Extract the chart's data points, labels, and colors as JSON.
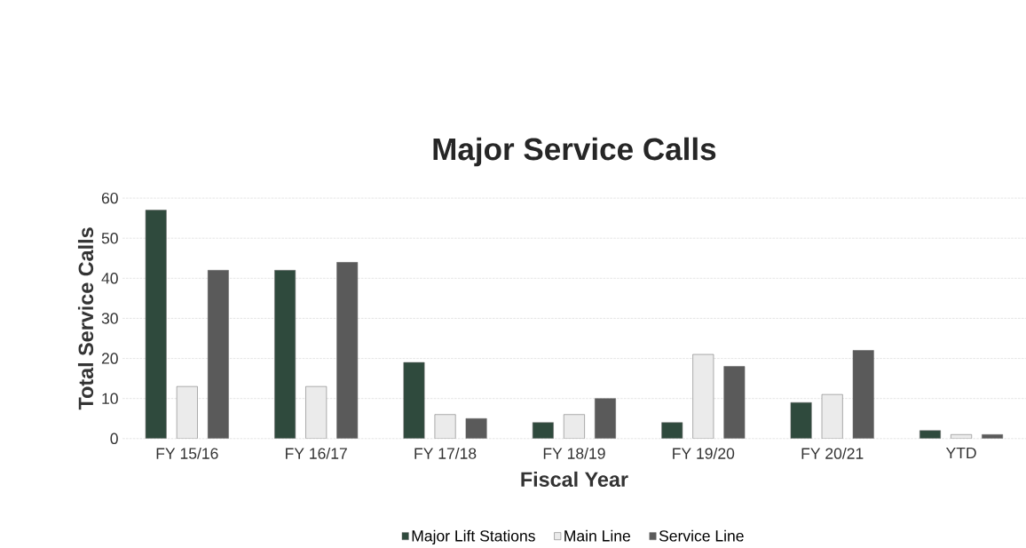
{
  "chart_data": {
    "type": "bar",
    "title": "Major Service Calls",
    "xlabel": "Fiscal Year",
    "ylabel": "Total Service Calls",
    "categories": [
      "FY 15/16",
      "FY 16/17",
      "FY 17/18",
      "FY 18/19",
      "FY 19/20",
      "FY 20/21",
      "YTD"
    ],
    "series": [
      {
        "name": "Major Lift Stations",
        "color": "#2f4a3d",
        "values": [
          57,
          42,
          19,
          4,
          4,
          9,
          2
        ]
      },
      {
        "name": "Main Line",
        "color": "#ebebeb",
        "values": [
          13,
          13,
          6,
          6,
          21,
          11,
          1
        ]
      },
      {
        "name": "Service Line",
        "color": "#5a5a5a",
        "values": [
          42,
          44,
          5,
          10,
          18,
          22,
          1
        ]
      }
    ],
    "ylim": [
      0,
      60
    ],
    "yticks": [
      0,
      10,
      20,
      30,
      40,
      50,
      60
    ],
    "grid": "y",
    "legend": "bottom"
  }
}
